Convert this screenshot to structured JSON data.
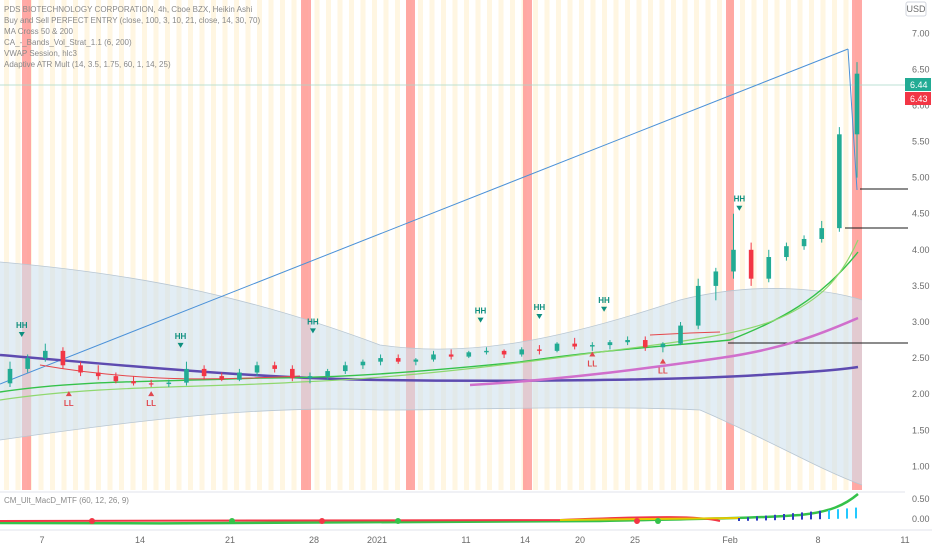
{
  "chart_data": {
    "type": "candlestick",
    "title": "PDS BIOTECHNOLOGY CORPORATION, 4h, Cboe BZX, Heikin Ashi",
    "currency": "USD",
    "legend": [
      "PDS BIOTECHNOLOGY CORPORATION, 4h, Cboe BZX, Heikin Ashi",
      "Buy and Sell PERFECT ENTRY (close, 100, 3, 10, 21, close, 14, 30, 70)",
      "MA Cross 50 & 200",
      "CA_-_Bands_Vol_Strat_1.1 (6, 200)",
      "VWAP Session, hlc3",
      "Adaptive ATR Mult (14, 3.5, 1.75, 60, 1, 14, 25)"
    ],
    "subpanel_label": "CM_Ult_MacD_MTF (60, 12, 26, 9)",
    "y_ticks": [
      "7.00",
      "6.50",
      "6.00",
      "5.50",
      "5.00",
      "4.50",
      "4.00",
      "3.50",
      "3.00",
      "2.50",
      "2.00",
      "1.50",
      "1.00"
    ],
    "y_range": [
      0.7,
      7.35
    ],
    "price_labels": [
      {
        "value": "6.44",
        "color": "#22ab94"
      },
      {
        "value": "6.43",
        "color": "#f23645"
      }
    ],
    "sub_ticks": [
      "0.50",
      "0.00"
    ],
    "x_ticks": [
      "7",
      "14",
      "21",
      "28",
      "2021",
      "11",
      "14",
      "20",
      "25",
      "Feb",
      "8",
      "11"
    ],
    "colors": {
      "up": "#22ab94",
      "down": "#f23645",
      "highlight": "#ff9a97",
      "ma_long": "#5e4bb0",
      "ma_short": "#d06fcc",
      "band": "#cfe1ee",
      "trend": "#4b91d8",
      "signal_up": "#0e8f7f",
      "signal_down": "#e0494f"
    },
    "highlight_bars": [
      {
        "start": 0.0,
        "end": 0.45
      },
      {
        "start": 13.95,
        "end": 14.45
      },
      {
        "start": 19.2,
        "end": 19.65
      },
      {
        "start": 25.05,
        "end": 25.5
      },
      {
        "start": 35.2,
        "end": 35.6
      },
      {
        "start": 41.5,
        "end": 42.0
      }
    ],
    "candles": [
      {
        "x": 0.02,
        "o": 2.15,
        "h": 2.45,
        "l": 2.1,
        "c": 2.35
      },
      {
        "x": 0.08,
        "o": 2.35,
        "h": 2.55,
        "l": 2.3,
        "c": 2.5
      },
      {
        "x": 0.14,
        "o": 2.5,
        "h": 2.7,
        "l": 2.45,
        "c": 2.6
      },
      {
        "x": 0.2,
        "o": 2.6,
        "h": 2.65,
        "l": 2.35,
        "c": 2.4
      },
      {
        "x": 0.26,
        "o": 2.4,
        "h": 2.45,
        "l": 2.25,
        "c": 2.3
      },
      {
        "x": 0.32,
        "o": 2.3,
        "h": 2.4,
        "l": 2.2,
        "c": 2.25
      },
      {
        "x": 0.38,
        "o": 2.25,
        "h": 2.3,
        "l": 2.15,
        "c": 2.18
      },
      {
        "x": 0.44,
        "o": 2.18,
        "h": 2.25,
        "l": 2.12,
        "c": 2.15
      },
      {
        "x": 0.5,
        "o": 2.15,
        "h": 2.2,
        "l": 2.1,
        "c": 2.14
      },
      {
        "x": 0.56,
        "o": 2.14,
        "h": 2.2,
        "l": 2.1,
        "c": 2.16
      },
      {
        "x": 0.62,
        "o": 2.16,
        "h": 2.45,
        "l": 2.12,
        "c": 2.35
      },
      {
        "x": 0.68,
        "o": 2.35,
        "h": 2.4,
        "l": 2.2,
        "c": 2.25
      },
      {
        "x": 0.74,
        "o": 2.25,
        "h": 2.3,
        "l": 2.18,
        "c": 2.2
      },
      {
        "x": 0.8,
        "o": 2.2,
        "h": 2.35,
        "l": 2.18,
        "c": 2.3
      },
      {
        "x": 0.86,
        "o": 2.3,
        "h": 2.45,
        "l": 2.25,
        "c": 2.4
      },
      {
        "x": 0.92,
        "o": 2.4,
        "h": 2.45,
        "l": 2.3,
        "c": 2.35
      },
      {
        "x": 0.98,
        "o": 2.35,
        "h": 2.4,
        "l": 2.18,
        "c": 2.22
      },
      {
        "x": 1.04,
        "o": 2.22,
        "h": 2.3,
        "l": 2.15,
        "c": 2.25
      },
      {
        "x": 1.1,
        "o": 2.25,
        "h": 2.35,
        "l": 2.2,
        "c": 2.32
      },
      {
        "x": 1.16,
        "o": 2.32,
        "h": 2.45,
        "l": 2.28,
        "c": 2.4
      },
      {
        "x": 1.22,
        "o": 2.4,
        "h": 2.48,
        "l": 2.35,
        "c": 2.45
      },
      {
        "x": 1.28,
        "o": 2.45,
        "h": 2.55,
        "l": 2.4,
        "c": 2.5
      },
      {
        "x": 1.34,
        "o": 2.5,
        "h": 2.55,
        "l": 2.42,
        "c": 2.45
      },
      {
        "x": 1.4,
        "o": 2.45,
        "h": 2.5,
        "l": 2.4,
        "c": 2.48
      },
      {
        "x": 1.46,
        "o": 2.48,
        "h": 2.6,
        "l": 2.45,
        "c": 2.55
      },
      {
        "x": 1.52,
        "o": 2.55,
        "h": 2.62,
        "l": 2.48,
        "c": 2.52
      },
      {
        "x": 1.58,
        "o": 2.52,
        "h": 2.6,
        "l": 2.5,
        "c": 2.58
      },
      {
        "x": 1.64,
        "o": 2.58,
        "h": 2.65,
        "l": 2.55,
        "c": 2.6
      },
      {
        "x": 1.7,
        "o": 2.6,
        "h": 2.62,
        "l": 2.5,
        "c": 2.55
      },
      {
        "x": 1.76,
        "o": 2.55,
        "h": 2.65,
        "l": 2.52,
        "c": 2.62
      },
      {
        "x": 1.82,
        "o": 2.62,
        "h": 2.68,
        "l": 2.55,
        "c": 2.6
      },
      {
        "x": 1.88,
        "o": 2.6,
        "h": 2.72,
        "l": 2.58,
        "c": 2.7
      },
      {
        "x": 1.94,
        "o": 2.7,
        "h": 2.78,
        "l": 2.62,
        "c": 2.66
      },
      {
        "x": 2.0,
        "o": 2.66,
        "h": 2.72,
        "l": 2.6,
        "c": 2.68
      },
      {
        "x": 2.06,
        "o": 2.68,
        "h": 2.75,
        "l": 2.62,
        "c": 2.72
      },
      {
        "x": 2.12,
        "o": 2.72,
        "h": 2.8,
        "l": 2.68,
        "c": 2.75
      },
      {
        "x": 2.18,
        "o": 2.75,
        "h": 2.8,
        "l": 2.6,
        "c": 2.65
      },
      {
        "x": 2.24,
        "o": 2.65,
        "h": 2.72,
        "l": 2.58,
        "c": 2.7
      },
      {
        "x": 2.3,
        "o": 2.7,
        "h": 3.0,
        "l": 2.68,
        "c": 2.95
      },
      {
        "x": 2.36,
        "o": 2.95,
        "h": 3.6,
        "l": 2.9,
        "c": 3.5
      },
      {
        "x": 2.42,
        "o": 3.5,
        "h": 3.75,
        "l": 3.3,
        "c": 3.7
      },
      {
        "x": 2.48,
        "o": 3.7,
        "h": 4.5,
        "l": 3.6,
        "c": 4.0
      },
      {
        "x": 2.54,
        "o": 4.0,
        "h": 4.1,
        "l": 3.5,
        "c": 3.6
      },
      {
        "x": 2.6,
        "o": 3.6,
        "h": 4.0,
        "l": 3.55,
        "c": 3.9
      },
      {
        "x": 2.66,
        "o": 3.9,
        "h": 4.1,
        "l": 3.85,
        "c": 4.05
      },
      {
        "x": 2.72,
        "o": 4.05,
        "h": 4.2,
        "l": 4.0,
        "c": 4.15
      },
      {
        "x": 2.78,
        "o": 4.15,
        "h": 4.4,
        "l": 4.1,
        "c": 4.3
      },
      {
        "x": 2.84,
        "o": 4.3,
        "h": 5.7,
        "l": 4.25,
        "c": 5.6
      },
      {
        "x": 2.9,
        "o": 5.6,
        "h": 6.6,
        "l": 5.0,
        "c": 6.44
      }
    ],
    "annotations": [
      {
        "text": "HH",
        "x": 0.06,
        "price": 2.75,
        "kind": "high"
      },
      {
        "text": "LL",
        "x": 0.22,
        "price": 2.0,
        "kind": "low"
      },
      {
        "text": "LL",
        "x": 0.5,
        "price": 2.0,
        "kind": "low"
      },
      {
        "text": "HH",
        "x": 0.6,
        "price": 2.6,
        "kind": "high"
      },
      {
        "text": "HH",
        "x": 1.05,
        "price": 2.8,
        "kind": "high"
      },
      {
        "text": "HH",
        "x": 1.62,
        "price": 2.95,
        "kind": "high"
      },
      {
        "text": "HH",
        "x": 1.82,
        "price": 3.0,
        "kind": "high"
      },
      {
        "text": "HH",
        "x": 2.04,
        "price": 3.1,
        "kind": "high"
      },
      {
        "text": "LL",
        "x": 2.0,
        "price": 2.55,
        "kind": "low"
      },
      {
        "text": "LL",
        "x": 2.24,
        "price": 2.45,
        "kind": "low"
      },
      {
        "text": "HH",
        "x": 2.5,
        "price": 4.5,
        "kind": "high"
      }
    ]
  }
}
